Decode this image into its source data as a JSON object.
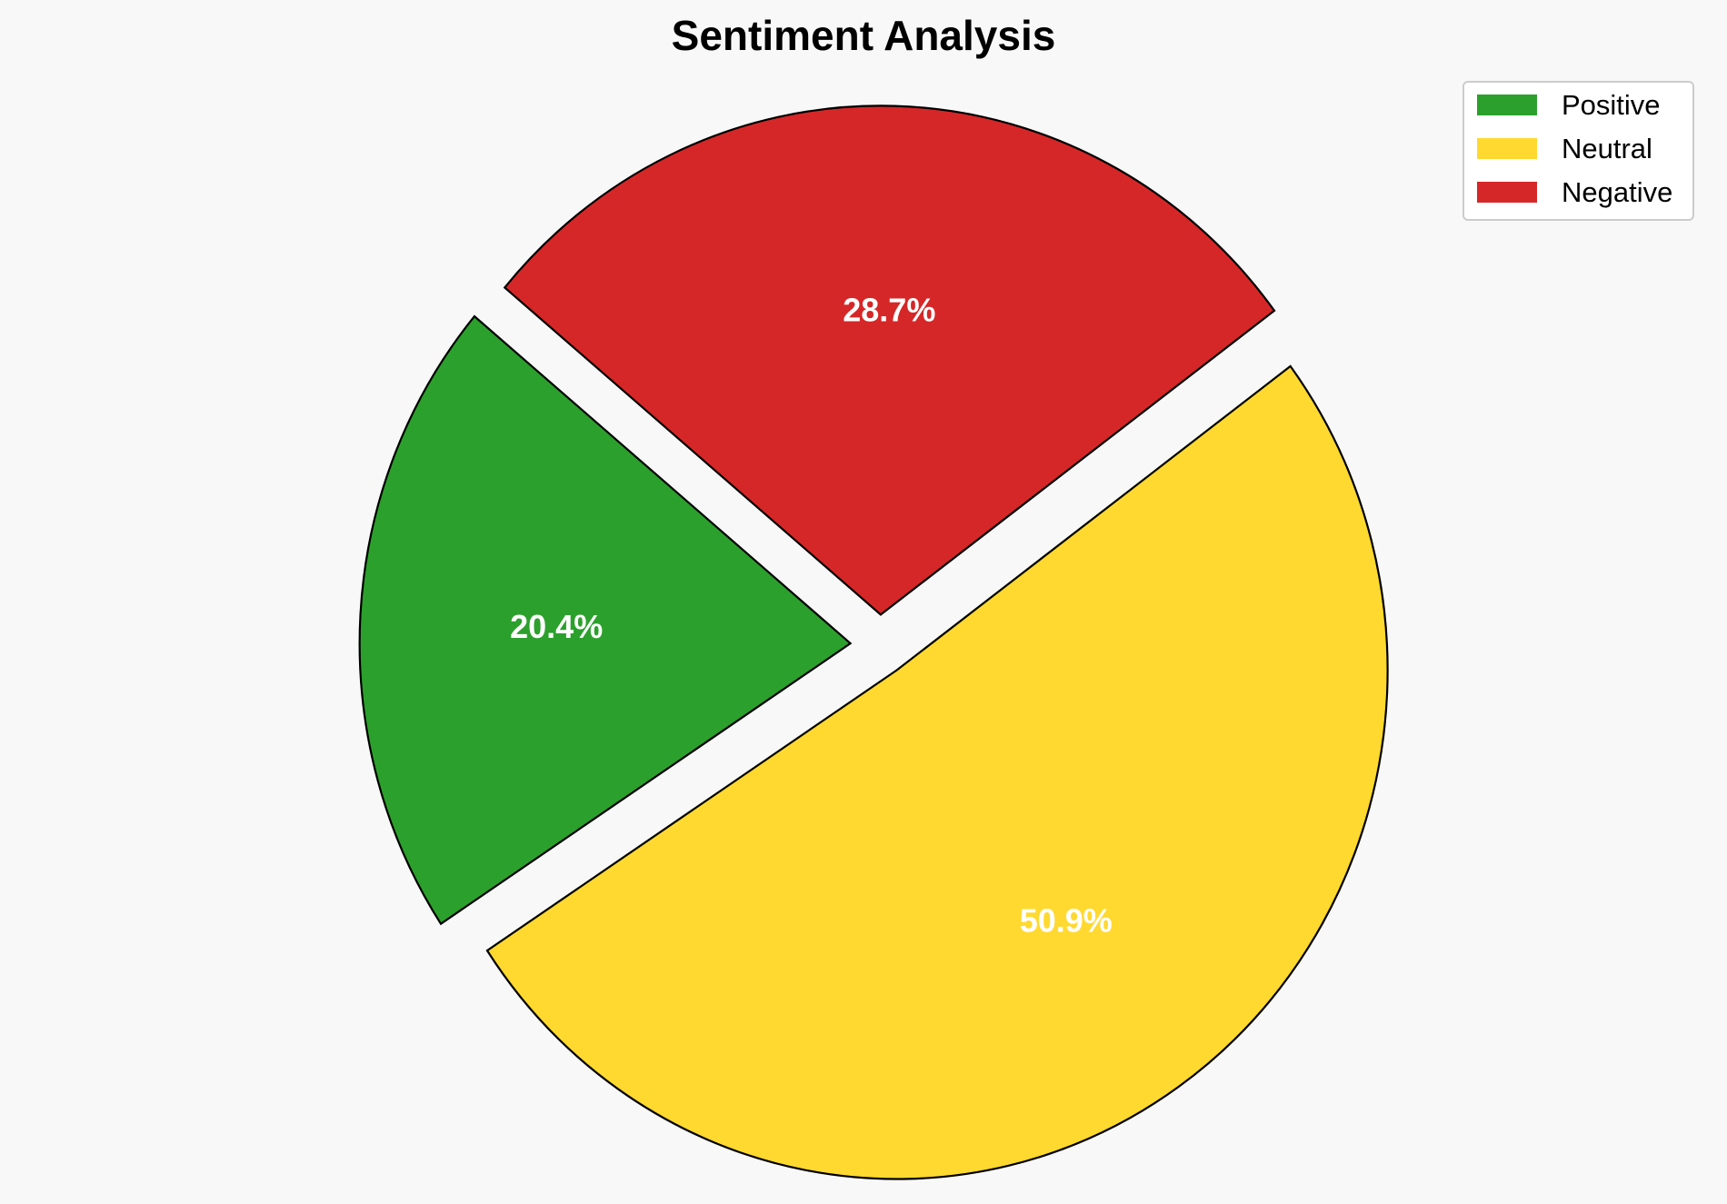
{
  "chart_data": {
    "type": "pie",
    "title": "Sentiment Analysis",
    "categories": [
      "Positive",
      "Neutral",
      "Negative"
    ],
    "values": [
      20.4,
      50.9,
      28.7
    ],
    "labels": [
      "20.4%",
      "50.9%",
      "28.7%"
    ],
    "colors": [
      "#2ca02c",
      "#ffd92f",
      "#d62728"
    ],
    "explode": true,
    "legend": {
      "placement": "top-right",
      "entries": [
        "Positive",
        "Neutral",
        "Negative"
      ]
    }
  }
}
